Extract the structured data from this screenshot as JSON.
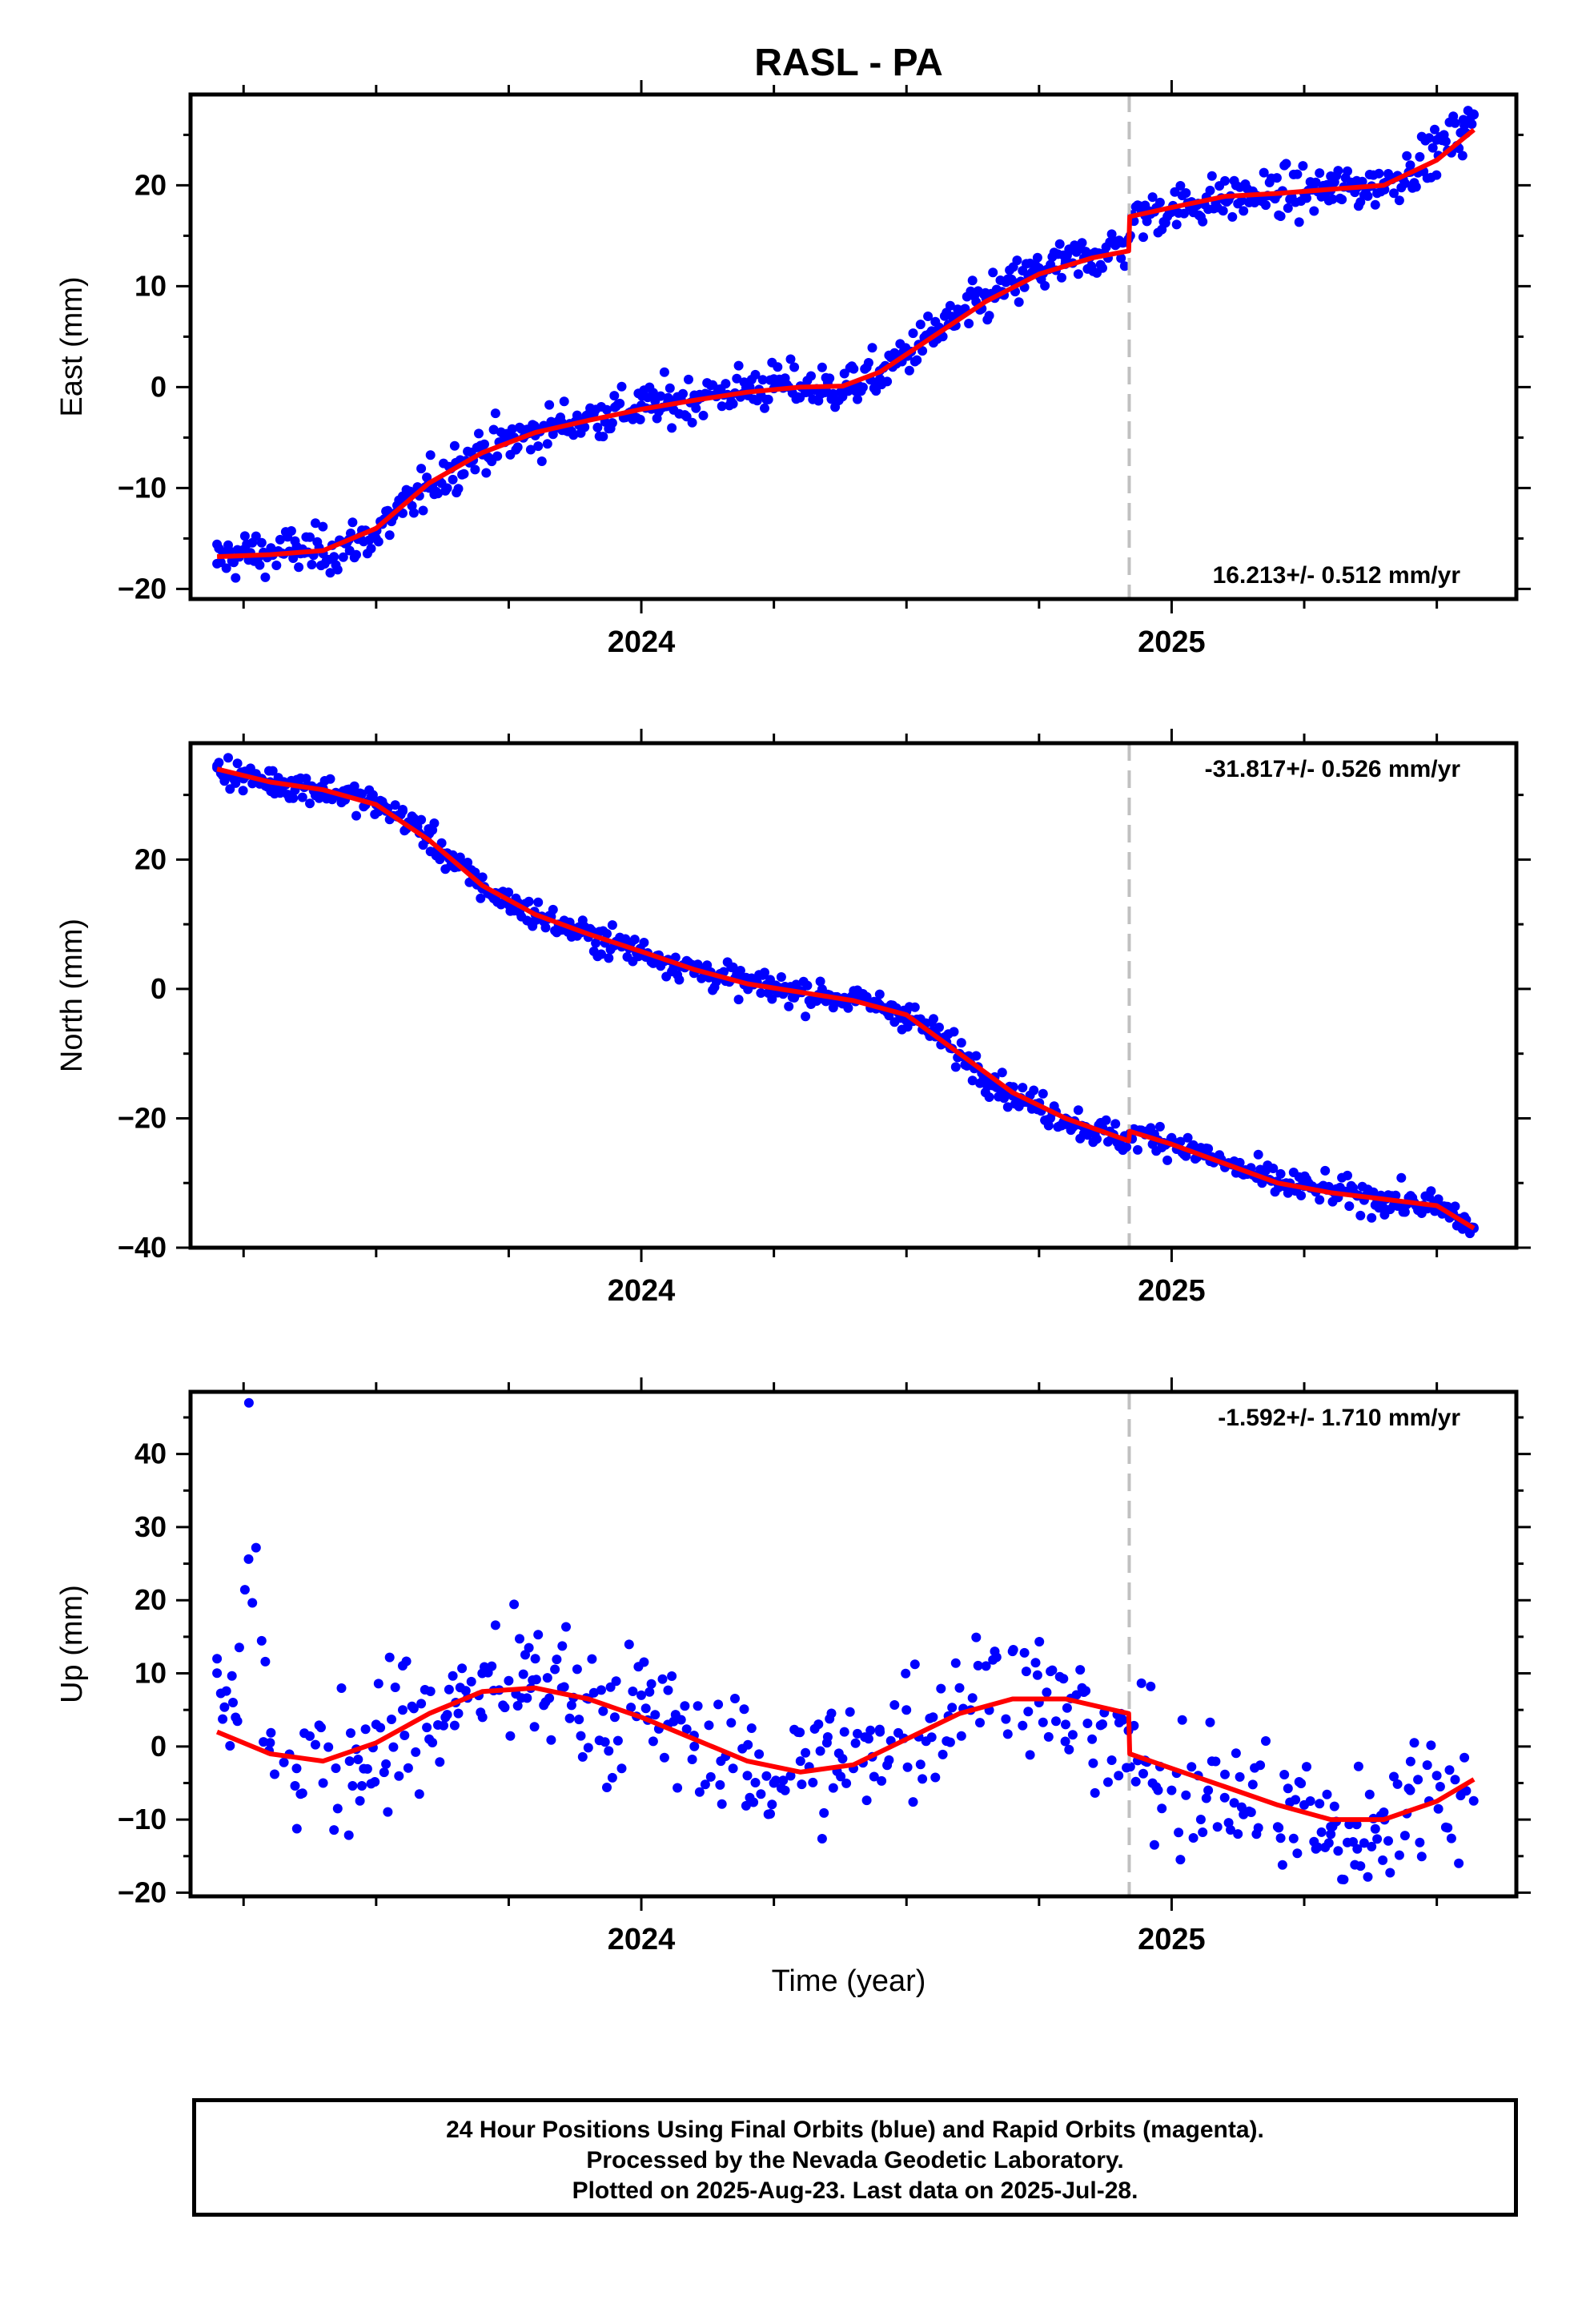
{
  "title": "RASL - PA",
  "xlabel": "Time (year)",
  "colors": {
    "points": "#0000ff",
    "model": "#ff0000",
    "step": "#c0c0c0",
    "frame": "#000000"
  },
  "footer": {
    "line1": "24 Hour Positions Using Final Orbits (blue) and Rapid Orbits (magenta).",
    "line2": "Processed by the Nevada Geodetic Laboratory.",
    "line3": "Plotted on 2025-Aug-23. Last data on 2025-Jul-28."
  },
  "chart_data": [
    {
      "type": "scatter",
      "component": "east",
      "ylabel": "East (mm)",
      "rate_label": "16.213+/- 0.512 mm/yr",
      "xlim": [
        2023.15,
        2025.65
      ],
      "ylim": [
        -21,
        29
      ],
      "yticks": [
        -20,
        -10,
        0,
        10,
        20
      ],
      "xticks": [
        2024,
        2025
      ],
      "xtick_labels": [
        "2024",
        "2025"
      ],
      "data_span": [
        2023.2,
        2025.57
      ],
      "step_epoch": 2024.92,
      "series": [
        {
          "kind": "fit",
          "x": [
            2023.2,
            2023.3,
            2023.4,
            2023.5,
            2023.6,
            2023.7,
            2023.8,
            2023.9,
            2024.0,
            2024.1,
            2024.2,
            2024.3,
            2024.38,
            2024.45,
            2024.55,
            2024.65,
            2024.75,
            2024.85,
            2024.919,
            2024.921,
            2025.0,
            2025.1,
            2025.2,
            2025.3,
            2025.4,
            2025.5,
            2025.57
          ],
          "y": [
            -16.8,
            -16.6,
            -16.2,
            -14.0,
            -9.5,
            -6.5,
            -4.5,
            -3.3,
            -2.2,
            -1.3,
            -0.5,
            0.0,
            0.1,
            1.5,
            5.0,
            8.5,
            11.2,
            12.8,
            13.5,
            16.9,
            17.8,
            18.9,
            19.2,
            19.6,
            20.0,
            22.5,
            25.5
          ]
        },
        {
          "kind": "observations",
          "x": [
            2023.2,
            2023.25,
            2023.3,
            2023.35,
            2023.4,
            2023.45,
            2023.5,
            2023.55,
            2023.6,
            2023.65,
            2023.7,
            2023.75,
            2023.8,
            2023.85,
            2023.9,
            2023.95,
            2024.0,
            2024.05,
            2024.1,
            2024.15,
            2024.2,
            2024.25,
            2024.3,
            2024.35,
            2024.4,
            2024.45,
            2024.5,
            2024.55,
            2024.6,
            2024.65,
            2024.7,
            2024.75,
            2024.8,
            2024.85,
            2024.9,
            2024.95,
            2025.0,
            2025.05,
            2025.1,
            2025.15,
            2025.2,
            2025.25,
            2025.3,
            2025.35,
            2025.4,
            2025.45,
            2025.5,
            2025.55,
            2025.57
          ],
          "y": [
            -17.5,
            -16.2,
            -16.5,
            -15.8,
            -16.5,
            -16.2,
            -15.0,
            -12.5,
            -10.0,
            -7.5,
            -5.8,
            -5.2,
            -4.8,
            -3.5,
            -2.8,
            -2.0,
            -1.8,
            -1.5,
            -0.8,
            -0.2,
            0.2,
            0.8,
            0.1,
            -0.5,
            0.2,
            0.8,
            3.5,
            5.5,
            7.2,
            8.8,
            10.5,
            11.8,
            12.5,
            13.2,
            14.5,
            17.0,
            17.6,
            18.2,
            18.5,
            18.8,
            19.1,
            19.2,
            19.5,
            19.8,
            20.2,
            22.0,
            24.5,
            26.5,
            27.0
          ]
        }
      ]
    },
    {
      "type": "scatter",
      "component": "north",
      "ylabel": "North (mm)",
      "rate_label": "-31.817+/- 0.526 mm/yr",
      "xlim": [
        2023.15,
        2025.65
      ],
      "ylim": [
        -40,
        38
      ],
      "yticks": [
        -40,
        -20,
        0,
        20
      ],
      "xticks": [
        2024,
        2025
      ],
      "xtick_labels": [
        "2024",
        "2025"
      ],
      "data_span": [
        2023.2,
        2025.57
      ],
      "step_epoch": 2024.92,
      "series": [
        {
          "kind": "fit",
          "x": [
            2023.2,
            2023.3,
            2023.4,
            2023.5,
            2023.6,
            2023.7,
            2023.8,
            2023.9,
            2024.0,
            2024.1,
            2024.2,
            2024.3,
            2024.4,
            2024.5,
            2024.6,
            2024.7,
            2024.8,
            2024.919,
            2024.921,
            2025.0,
            2025.1,
            2025.2,
            2025.3,
            2025.4,
            2025.5,
            2025.57
          ],
          "y": [
            34.0,
            32.0,
            30.8,
            28.5,
            23.0,
            16.0,
            11.5,
            8.5,
            5.8,
            3.0,
            0.8,
            -0.5,
            -1.8,
            -4.0,
            -10.0,
            -16.0,
            -20.0,
            -23.5,
            -22.0,
            -24.0,
            -27.0,
            -30.0,
            -31.5,
            -32.5,
            -33.5,
            -37.0
          ]
        },
        {
          "kind": "observations",
          "x": [
            2023.2,
            2023.25,
            2023.3,
            2023.35,
            2023.4,
            2023.45,
            2023.5,
            2023.55,
            2023.6,
            2023.65,
            2023.7,
            2023.75,
            2023.8,
            2023.85,
            2023.9,
            2023.95,
            2024.0,
            2024.05,
            2024.1,
            2024.15,
            2024.2,
            2024.25,
            2024.3,
            2024.35,
            2024.4,
            2024.45,
            2024.5,
            2024.55,
            2024.6,
            2024.65,
            2024.7,
            2024.75,
            2024.8,
            2024.85,
            2024.9,
            2024.95,
            2025.0,
            2025.05,
            2025.1,
            2025.15,
            2025.2,
            2025.25,
            2025.3,
            2025.35,
            2025.4,
            2025.45,
            2025.5,
            2025.55,
            2025.57
          ],
          "y": [
            34.5,
            32.5,
            32.0,
            31.5,
            31.0,
            30.0,
            28.5,
            27.5,
            24.0,
            19.0,
            15.5,
            13.0,
            11.5,
            9.5,
            8.0,
            7.0,
            5.5,
            4.5,
            3.0,
            2.0,
            0.8,
            0.2,
            -0.5,
            -1.0,
            -1.5,
            -2.5,
            -3.5,
            -6.5,
            -10.0,
            -13.5,
            -16.5,
            -18.5,
            -20.0,
            -22.0,
            -23.5,
            -22.5,
            -23.0,
            -25.0,
            -27.0,
            -28.5,
            -30.0,
            -30.5,
            -31.0,
            -32.0,
            -32.5,
            -33.0,
            -34.0,
            -36.0,
            -37.0
          ]
        }
      ]
    },
    {
      "type": "scatter",
      "component": "up",
      "ylabel": "Up (mm)",
      "rate_label": "-1.592+/- 1.710 mm/yr",
      "xlim": [
        2023.15,
        2025.65
      ],
      "ylim": [
        -20.5,
        48.5
      ],
      "yticks": [
        -20,
        -10,
        0,
        10,
        20,
        30,
        40
      ],
      "xticks": [
        2024,
        2025
      ],
      "xtick_labels": [
        "2024",
        "2025"
      ],
      "data_span": [
        2023.2,
        2025.57
      ],
      "step_epoch": 2024.92,
      "series": [
        {
          "kind": "fit",
          "x": [
            2023.2,
            2023.3,
            2023.4,
            2023.5,
            2023.6,
            2023.7,
            2023.8,
            2023.9,
            2024.0,
            2024.1,
            2024.2,
            2024.3,
            2024.4,
            2024.5,
            2024.6,
            2024.7,
            2024.8,
            2024.919,
            2024.921,
            2025.0,
            2025.1,
            2025.2,
            2025.3,
            2025.4,
            2025.5,
            2025.57
          ],
          "y": [
            2.0,
            -1.0,
            -2.0,
            0.5,
            4.5,
            7.5,
            8.0,
            6.5,
            4.0,
            1.0,
            -2.0,
            -3.5,
            -2.5,
            1.0,
            4.5,
            6.5,
            6.5,
            4.5,
            -1.0,
            -3.0,
            -5.5,
            -8.0,
            -10.0,
            -10.0,
            -7.5,
            -4.5
          ]
        },
        {
          "kind": "observations",
          "x": [
            2023.2,
            2023.23,
            2023.26,
            2023.3,
            2023.35,
            2023.4,
            2023.45,
            2023.5,
            2023.55,
            2023.6,
            2023.65,
            2023.7,
            2023.75,
            2023.8,
            2023.85,
            2023.9,
            2023.95,
            2024.0,
            2024.05,
            2024.1,
            2024.15,
            2024.2,
            2024.25,
            2024.3,
            2024.35,
            2024.4,
            2024.45,
            2024.5,
            2024.55,
            2024.6,
            2024.65,
            2024.7,
            2024.75,
            2024.8,
            2024.85,
            2024.9,
            2024.95,
            2025.0,
            2025.05,
            2025.1,
            2025.15,
            2025.2,
            2025.25,
            2025.3,
            2025.35,
            2025.4,
            2025.45,
            2025.5,
            2025.55
          ],
          "y": [
            12.0,
            6.0,
            47.0,
            0.5,
            -3.0,
            -5.0,
            -2.0,
            3.0,
            5.0,
            1.0,
            6.0,
            10.0,
            9.0,
            12.0,
            8.0,
            6.5,
            4.0,
            7.0,
            3.0,
            0.0,
            -2.0,
            -4.0,
            -5.0,
            -2.0,
            0.5,
            -3.0,
            2.0,
            5.0,
            4.0,
            8.0,
            11.0,
            13.0,
            6.0,
            3.0,
            1.0,
            -4.0,
            -2.0,
            -6.0,
            -4.0,
            -7.0,
            -9.0,
            -11.0,
            -8.0,
            -12.0,
            -14.0,
            -9.0,
            -6.0,
            -4.0,
            -6.0
          ]
        }
      ]
    }
  ]
}
